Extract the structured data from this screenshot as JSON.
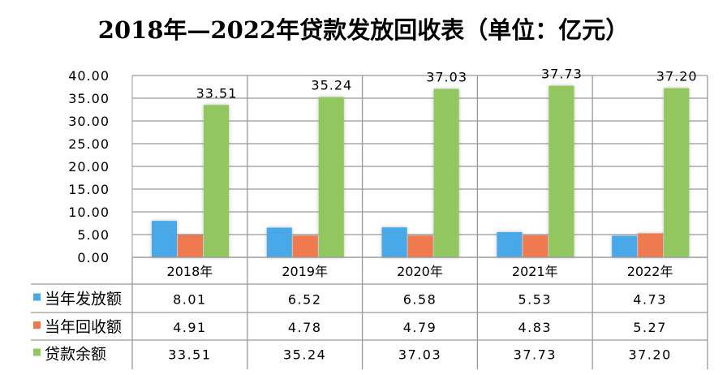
{
  "chart_data": {
    "type": "bar",
    "title": "2018年—2022年贷款发放回收表（单位：亿元）",
    "categories": [
      "2018年",
      "2019年",
      "2020年",
      "2021年",
      "2022年"
    ],
    "series": [
      {
        "name": "当年发放额",
        "values": [
          8.01,
          6.52,
          6.58,
          5.53,
          4.73
        ],
        "color": "#4aa8e8"
      },
      {
        "name": "当年回收额",
        "values": [
          4.91,
          4.78,
          4.79,
          4.83,
          5.27
        ],
        "color": "#f07a50"
      },
      {
        "name": "贷款余额",
        "values": [
          33.51,
          35.24,
          37.03,
          37.73,
          37.2
        ],
        "color": "#92c75e"
      }
    ],
    "data_labels": {
      "series": "贷款余额",
      "labels": [
        "33.51",
        "35.24",
        "37.03",
        "37.73",
        "37.20"
      ]
    },
    "table_values": [
      [
        "8.01",
        "6.52",
        "6.58",
        "5.53",
        "4.73"
      ],
      [
        "4.91",
        "4.78",
        "4.79",
        "4.83",
        "5.27"
      ],
      [
        "33.51",
        "35.24",
        "37.03",
        "37.73",
        "37.20"
      ]
    ],
    "ylim": [
      0,
      40
    ],
    "yticks": [
      "0.00",
      "5.00",
      "10.00",
      "15.00",
      "20.00",
      "25.00",
      "30.00",
      "35.00",
      "40.00"
    ],
    "grid": true,
    "legend": "data-table-left"
  }
}
